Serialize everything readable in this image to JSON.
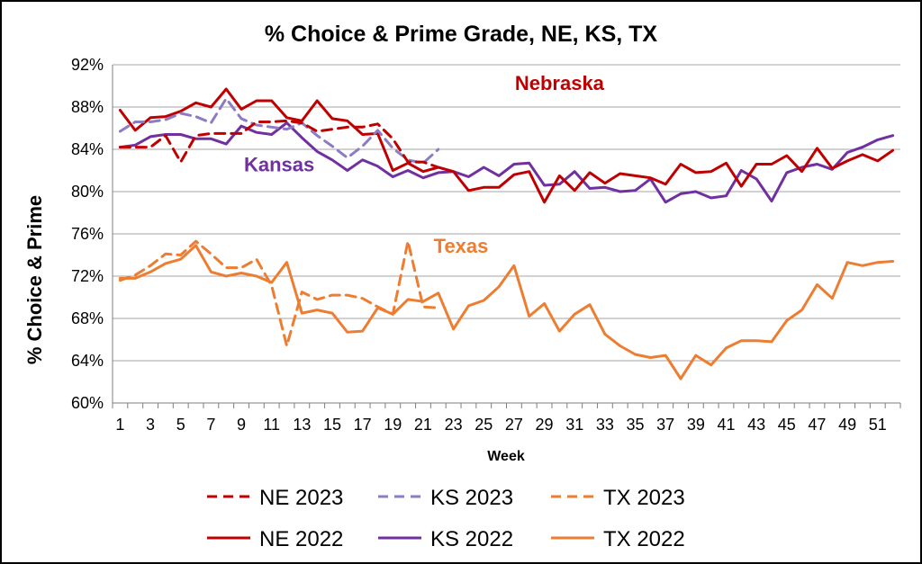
{
  "chart_data": {
    "type": "line",
    "title": "% Choice & Prime Grade, NE, KS, TX",
    "xlabel": "Week",
    "ylabel": "% Choice & Prime",
    "xlim": [
      1,
      52
    ],
    "ylim": [
      60,
      92
    ],
    "x_ticks": [
      1,
      3,
      5,
      7,
      9,
      11,
      13,
      15,
      17,
      19,
      21,
      23,
      25,
      27,
      29,
      31,
      33,
      35,
      37,
      39,
      41,
      43,
      45,
      47,
      49,
      51
    ],
    "y_ticks": [
      "60%",
      "64%",
      "68%",
      "72%",
      "76%",
      "80%",
      "84%",
      "88%",
      "92%"
    ],
    "y_tick_values": [
      60,
      64,
      68,
      72,
      76,
      80,
      84,
      88,
      92
    ],
    "grid": "horizontal",
    "legend_position": "bottom",
    "annotations": [
      {
        "text": "Nebraska",
        "color": "#c00000",
        "x": 30,
        "y": 89.6
      },
      {
        "text": "Kansas",
        "color": "#7030a0",
        "x": 11.5,
        "y": 81.9
      },
      {
        "text": "Texas",
        "color": "#ed7d31",
        "x": 23.5,
        "y": 74.2
      }
    ],
    "series": [
      {
        "name": "NE 2023",
        "color": "#c00000",
        "dash": true,
        "values": [
          84.2,
          84.2,
          84.2,
          85.3,
          82.8,
          85.3,
          85.5,
          85.5,
          85.5,
          86.6,
          86.6,
          86.7,
          86.5,
          85.7,
          85.9,
          86.1,
          86.1,
          86.4,
          85.0,
          82.8,
          82.8,
          82.3
        ]
      },
      {
        "name": "KS 2023",
        "color": "#8e7cc3",
        "dash": true,
        "values": [
          85.7,
          86.6,
          86.6,
          86.8,
          87.4,
          87.1,
          86.5,
          88.8,
          86.9,
          86.3,
          86.1,
          85.9,
          86.5,
          85.3,
          84.3,
          83.2,
          84.3,
          85.8,
          84.1,
          83.0,
          82.7,
          84.0
        ]
      },
      {
        "name": "TX 2023",
        "color": "#ed7d31",
        "dash": true,
        "values": [
          71.6,
          72.1,
          73.0,
          74.1,
          74.0,
          75.3,
          74.1,
          72.8,
          72.8,
          73.6,
          71.1,
          65.4,
          70.5,
          69.8,
          70.2,
          70.2,
          69.9,
          69.1,
          68.4,
          75.3,
          69.1,
          69.0
        ]
      },
      {
        "name": "NE 2022",
        "color": "#c00000",
        "dash": false,
        "values": [
          87.7,
          85.8,
          87.0,
          87.1,
          87.6,
          88.4,
          88.0,
          89.7,
          87.8,
          88.6,
          88.6,
          87.0,
          86.7,
          88.6,
          86.9,
          86.7,
          85.4,
          85.5,
          82.0,
          82.7,
          81.9,
          82.3,
          81.9,
          80.1,
          80.4,
          80.4,
          81.6,
          81.9,
          79.0,
          81.5,
          80.1,
          81.8,
          80.8,
          81.7,
          81.5,
          81.3,
          80.7,
          82.6,
          81.8,
          81.9,
          82.7,
          80.5,
          82.6,
          82.6,
          83.4,
          81.9,
          84.1,
          82.2,
          82.9,
          83.5,
          82.9,
          83.9
        ]
      },
      {
        "name": "KS 2022",
        "color": "#7030a0",
        "dash": false,
        "values": [
          84.2,
          84.4,
          85.2,
          85.4,
          85.4,
          85.0,
          85.0,
          84.5,
          86.2,
          85.6,
          85.4,
          86.5,
          85.1,
          83.8,
          83.0,
          82.0,
          83.0,
          82.4,
          81.4,
          82.0,
          81.3,
          81.8,
          81.9,
          81.4,
          82.3,
          81.5,
          82.6,
          82.7,
          80.6,
          80.7,
          81.9,
          80.3,
          80.4,
          80.0,
          80.1,
          81.2,
          79.0,
          79.8,
          80.0,
          79.4,
          79.6,
          82.0,
          81.2,
          79.1,
          81.8,
          82.3,
          82.6,
          82.1,
          83.7,
          84.2,
          84.9,
          85.3
        ]
      },
      {
        "name": "TX 2022",
        "color": "#ed7d31",
        "dash": false,
        "values": [
          71.8,
          71.8,
          72.4,
          73.2,
          73.6,
          74.9,
          72.4,
          72.0,
          72.3,
          72.0,
          71.4,
          73.3,
          68.5,
          68.8,
          68.5,
          66.7,
          66.8,
          69.0,
          68.4,
          69.8,
          69.6,
          70.4,
          67.0,
          69.2,
          69.7,
          71.0,
          73.0,
          68.2,
          69.4,
          66.8,
          68.4,
          69.3,
          66.5,
          65.4,
          64.6,
          64.3,
          64.5,
          62.3,
          64.5,
          63.6,
          65.2,
          65.9,
          65.9,
          65.8,
          67.8,
          68.8,
          71.2,
          69.9,
          73.3,
          73.0,
          73.3,
          73.4
        ]
      }
    ]
  }
}
